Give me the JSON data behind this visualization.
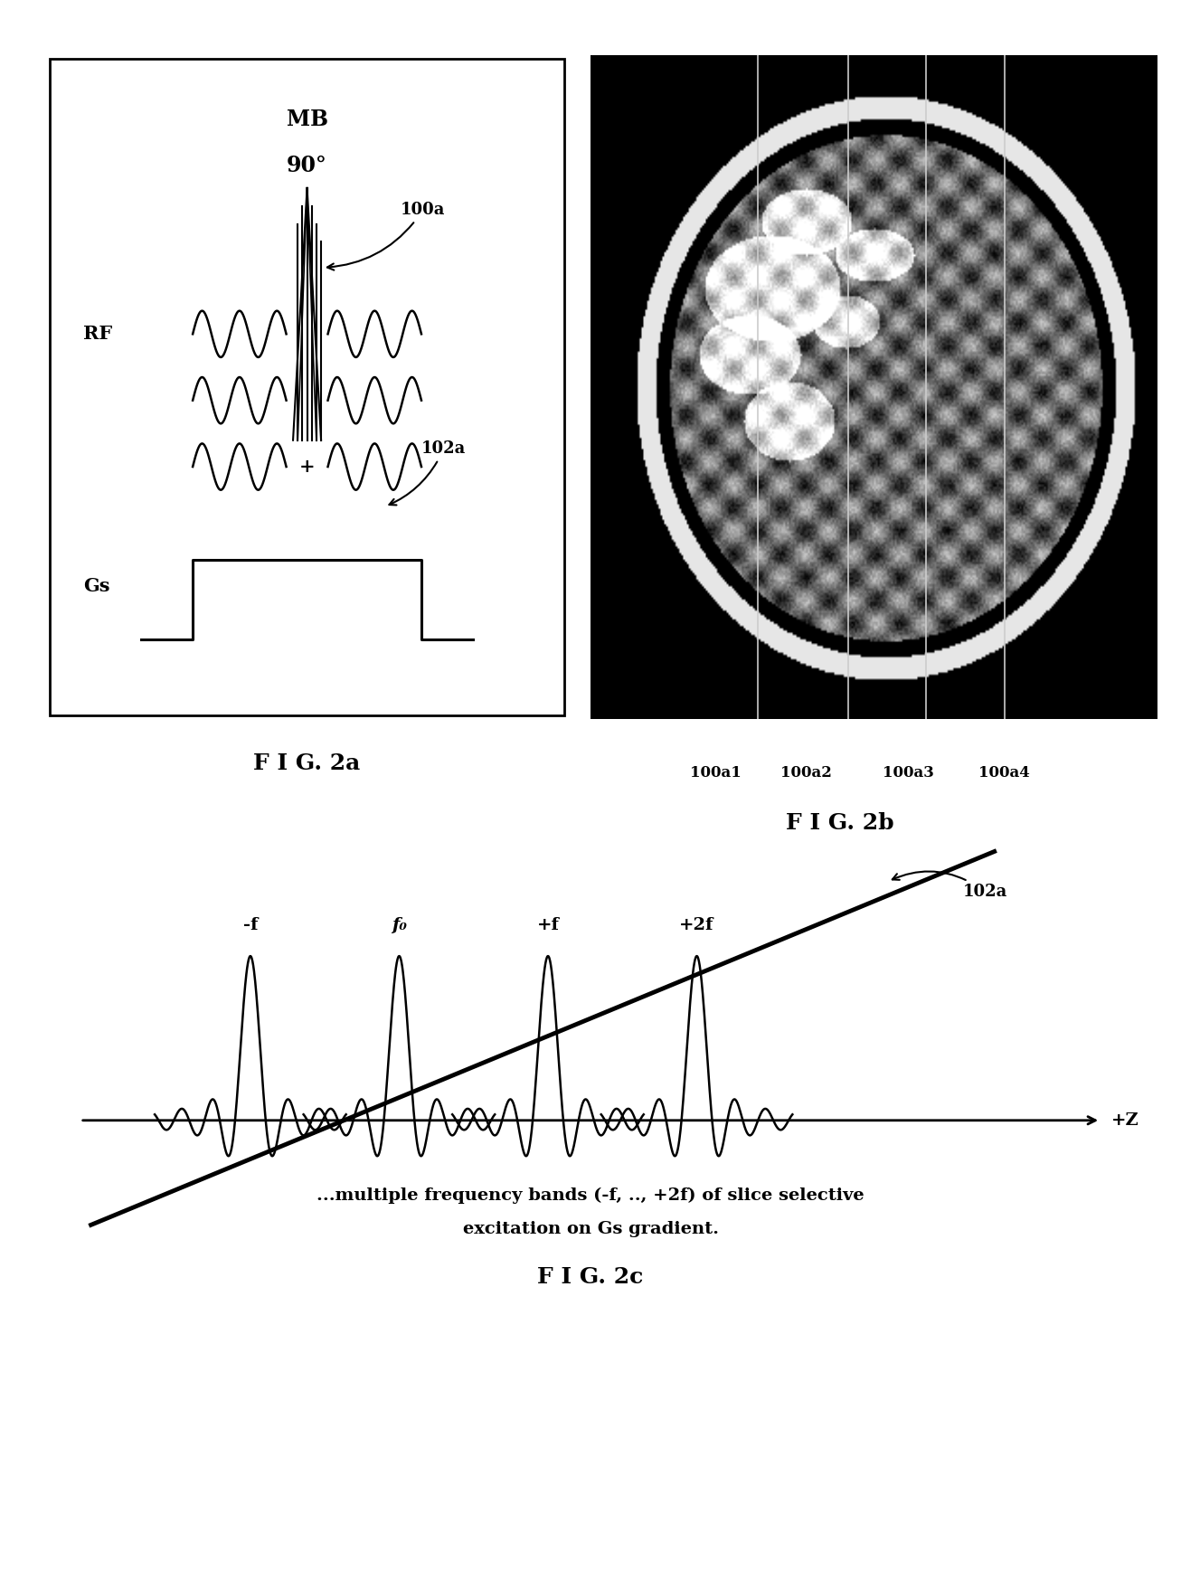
{
  "fig_width": 13.06,
  "fig_height": 17.47,
  "bg_color": "#ffffff",
  "fig2a": {
    "label_MB": "MB",
    "label_90": "90°",
    "label_RF": "RF",
    "label_Gs": "Gs",
    "label_100a": "100a",
    "label_102a": "102a",
    "fig_label": "F I G. 2a"
  },
  "fig2b": {
    "label_100a1": "100a1",
    "label_100a2": "100a2",
    "label_100a3": "100a3",
    "label_100a4": "100a4",
    "fig_label": "F I G. 2b"
  },
  "fig2c": {
    "fig_label": "F I G. 2c",
    "subtitle1": "...multiple frequency bands (-f, .., +2f) of slice selective",
    "subtitle2": "excitation on Gs gradient.",
    "label_negf": "-f",
    "label_f0": "f₀",
    "label_posf": "+f",
    "label_pos2f": "+2f",
    "label_posz": "+Z",
    "label_102a": "102a"
  }
}
